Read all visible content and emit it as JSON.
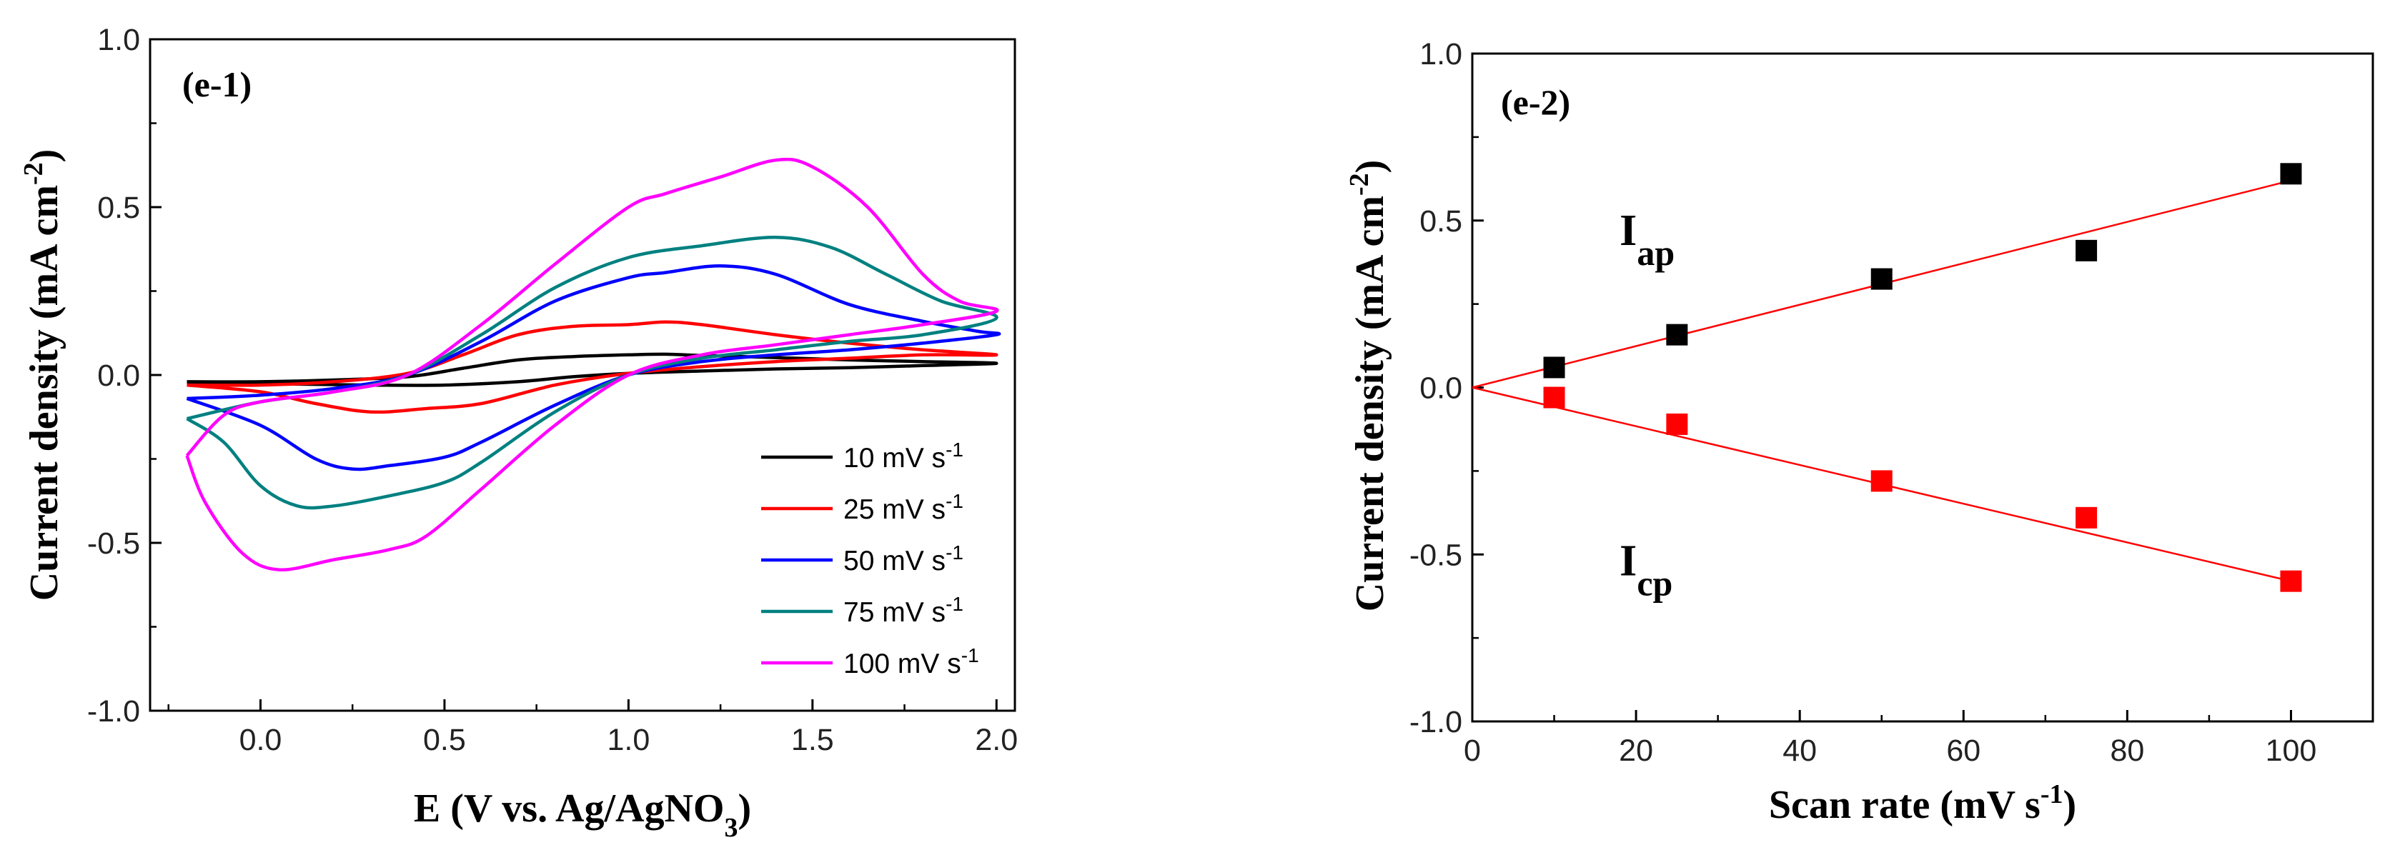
{
  "chart_data": [
    {
      "type": "line",
      "panel_label": "(e-1)",
      "xlabel": "E (V vs. Ag/AgNO",
      "xlabel_sub": "3",
      "xlabel_end": ")",
      "ylabel": "Current density (mA cm",
      "ylabel_sup": "-2",
      "ylabel_end": ")",
      "xlim": [
        -0.3,
        2.05
      ],
      "ylim": [
        -1.0,
        1.0
      ],
      "xticks": [
        0.0,
        0.5,
        1.0,
        1.5,
        2.0
      ],
      "xtick_labels": [
        "0.0",
        "0.5",
        "1.0",
        "1.5",
        "2.0"
      ],
      "yticks": [
        -1.0,
        -0.5,
        0.0,
        0.5,
        1.0
      ],
      "ytick_labels": [
        "-1.0",
        "-0.5",
        "0.0",
        "0.5",
        "1.0"
      ],
      "legend_position": "lower-right",
      "series": [
        {
          "name": "10 mV s",
          "unit_sup": "-1",
          "color": "#000000",
          "anodic": [
            [
              -0.2,
              -0.02
            ],
            [
              0.0,
              -0.02
            ],
            [
              0.2,
              -0.015
            ],
            [
              0.4,
              -0.005
            ],
            [
              0.55,
              0.02
            ],
            [
              0.7,
              0.045
            ],
            [
              0.85,
              0.055
            ],
            [
              1.0,
              0.06
            ],
            [
              1.1,
              0.062
            ],
            [
              1.2,
              0.058
            ],
            [
              1.4,
              0.052
            ],
            [
              1.6,
              0.045
            ],
            [
              1.8,
              0.04
            ],
            [
              2.0,
              0.035
            ]
          ],
          "cathodic": [
            [
              2.0,
              0.03
            ],
            [
              1.8,
              0.028
            ],
            [
              1.6,
              0.022
            ],
            [
              1.4,
              0.018
            ],
            [
              1.2,
              0.012
            ],
            [
              1.0,
              0.005
            ],
            [
              0.85,
              -0.005
            ],
            [
              0.7,
              -0.02
            ],
            [
              0.5,
              -0.03
            ],
            [
              0.3,
              -0.03
            ],
            [
              0.1,
              -0.027
            ],
            [
              -0.2,
              -0.025
            ]
          ]
        },
        {
          "name": "25 mV s",
          "unit_sup": "-1",
          "color": "#ff0000",
          "anodic": [
            [
              -0.2,
              -0.03
            ],
            [
              0.0,
              -0.03
            ],
            [
              0.2,
              -0.02
            ],
            [
              0.4,
              0.005
            ],
            [
              0.55,
              0.06
            ],
            [
              0.7,
              0.12
            ],
            [
              0.85,
              0.145
            ],
            [
              1.0,
              0.15
            ],
            [
              1.1,
              0.158
            ],
            [
              1.2,
              0.15
            ],
            [
              1.4,
              0.12
            ],
            [
              1.6,
              0.095
            ],
            [
              1.8,
              0.075
            ],
            [
              2.0,
              0.06
            ]
          ],
          "cathodic": [
            [
              2.0,
              0.065
            ],
            [
              1.8,
              0.06
            ],
            [
              1.6,
              0.05
            ],
            [
              1.4,
              0.04
            ],
            [
              1.2,
              0.025
            ],
            [
              1.0,
              0.005
            ],
            [
              0.8,
              -0.03
            ],
            [
              0.6,
              -0.085
            ],
            [
              0.45,
              -0.1
            ],
            [
              0.3,
              -0.11
            ],
            [
              0.15,
              -0.085
            ],
            [
              0.0,
              -0.05
            ],
            [
              -0.2,
              -0.03
            ]
          ]
        },
        {
          "name": "50 mV s",
          "unit_sup": "-1",
          "color": "#0000ff",
          "anodic": [
            [
              -0.2,
              -0.07
            ],
            [
              0.0,
              -0.06
            ],
            [
              0.2,
              -0.04
            ],
            [
              0.4,
              0.0
            ],
            [
              0.6,
              0.1
            ],
            [
              0.8,
              0.22
            ],
            [
              1.0,
              0.29
            ],
            [
              1.1,
              0.305
            ],
            [
              1.25,
              0.325
            ],
            [
              1.4,
              0.3
            ],
            [
              1.6,
              0.21
            ],
            [
              1.8,
              0.16
            ],
            [
              1.95,
              0.13
            ],
            [
              2.0,
              0.12
            ]
          ],
          "cathodic": [
            [
              2.0,
              0.11
            ],
            [
              1.8,
              0.095
            ],
            [
              1.6,
              0.075
            ],
            [
              1.4,
              0.06
            ],
            [
              1.2,
              0.04
            ],
            [
              1.0,
              0.0
            ],
            [
              0.8,
              -0.09
            ],
            [
              0.6,
              -0.2
            ],
            [
              0.5,
              -0.245
            ],
            [
              0.35,
              -0.27
            ],
            [
              0.25,
              -0.28
            ],
            [
              0.15,
              -0.25
            ],
            [
              0.0,
              -0.15
            ],
            [
              -0.2,
              -0.07
            ]
          ]
        },
        {
          "name": "75 mV s",
          "unit_sup": "-1",
          "color": "#008080",
          "anodic": [
            [
              -0.2,
              -0.13
            ],
            [
              0.0,
              -0.08
            ],
            [
              0.2,
              -0.05
            ],
            [
              0.4,
              0.0
            ],
            [
              0.6,
              0.12
            ],
            [
              0.8,
              0.26
            ],
            [
              1.0,
              0.35
            ],
            [
              1.2,
              0.385
            ],
            [
              1.4,
              0.41
            ],
            [
              1.55,
              0.38
            ],
            [
              1.7,
              0.3
            ],
            [
              1.85,
              0.22
            ],
            [
              2.0,
              0.17
            ]
          ],
          "cathodic": [
            [
              2.0,
              0.15
            ],
            [
              1.8,
              0.12
            ],
            [
              1.6,
              0.1
            ],
            [
              1.4,
              0.075
            ],
            [
              1.2,
              0.05
            ],
            [
              1.0,
              0.0
            ],
            [
              0.8,
              -0.11
            ],
            [
              0.6,
              -0.26
            ],
            [
              0.5,
              -0.32
            ],
            [
              0.35,
              -0.36
            ],
            [
              0.2,
              -0.39
            ],
            [
              0.1,
              -0.39
            ],
            [
              0.0,
              -0.33
            ],
            [
              -0.1,
              -0.2
            ],
            [
              -0.2,
              -0.13
            ]
          ]
        },
        {
          "name": "100 mV s",
          "unit_sup": "-1",
          "color": "#ff00ff",
          "anodic": [
            [
              -0.2,
              -0.24
            ],
            [
              -0.1,
              -0.12
            ],
            [
              0.0,
              -0.08
            ],
            [
              0.2,
              -0.05
            ],
            [
              0.4,
              0.0
            ],
            [
              0.6,
              0.15
            ],
            [
              0.8,
              0.33
            ],
            [
              1.0,
              0.5
            ],
            [
              1.1,
              0.54
            ],
            [
              1.25,
              0.59
            ],
            [
              1.4,
              0.64
            ],
            [
              1.5,
              0.62
            ],
            [
              1.65,
              0.5
            ],
            [
              1.8,
              0.3
            ],
            [
              1.9,
              0.22
            ],
            [
              2.0,
              0.19
            ]
          ],
          "cathodic": [
            [
              2.0,
              0.18
            ],
            [
              1.8,
              0.15
            ],
            [
              1.6,
              0.12
            ],
            [
              1.4,
              0.09
            ],
            [
              1.2,
              0.06
            ],
            [
              1.0,
              0.0
            ],
            [
              0.8,
              -0.15
            ],
            [
              0.6,
              -0.34
            ],
            [
              0.45,
              -0.48
            ],
            [
              0.35,
              -0.52
            ],
            [
              0.2,
              -0.55
            ],
            [
              0.05,
              -0.58
            ],
            [
              -0.05,
              -0.53
            ],
            [
              -0.15,
              -0.38
            ],
            [
              -0.2,
              -0.24
            ]
          ]
        }
      ]
    },
    {
      "type": "scatter",
      "panel_label": "(e-2)",
      "xlabel": "Scan rate (mV s",
      "xlabel_sup": "-1",
      "xlabel_end": ")",
      "ylabel": "Current density (mA cm",
      "ylabel_sup": "-2",
      "ylabel_end": ")",
      "xlim": [
        0,
        110
      ],
      "ylim": [
        -1.0,
        1.0
      ],
      "xticks": [
        0,
        20,
        40,
        60,
        80,
        100
      ],
      "xtick_labels": [
        "0",
        "20",
        "40",
        "60",
        "80",
        "100"
      ],
      "yticks": [
        -1.0,
        -0.5,
        0.0,
        0.5,
        1.0
      ],
      "ytick_labels": [
        "-1.0",
        "-0.5",
        "0.0",
        "0.5",
        "1.0"
      ],
      "annotations": [
        {
          "text": "I",
          "sub": "ap",
          "x": 18,
          "y": 0.47
        },
        {
          "text": "I",
          "sub": "cp",
          "x": 18,
          "y": -0.52
        }
      ],
      "series": [
        {
          "name": "Iap",
          "color": "#000000",
          "x": [
            10,
            25,
            50,
            75,
            100
          ],
          "y": [
            0.06,
            0.158,
            0.325,
            0.41,
            0.64
          ],
          "fit": [
            [
              0,
              0
            ],
            [
              100,
              0.62
            ]
          ]
        },
        {
          "name": "Icp",
          "color": "#ff0000",
          "x": [
            10,
            25,
            50,
            75,
            100
          ],
          "y": [
            -0.03,
            -0.11,
            -0.28,
            -0.39,
            -0.58
          ],
          "fit": [
            [
              0,
              0
            ],
            [
              100,
              -0.58
            ]
          ]
        }
      ]
    }
  ]
}
